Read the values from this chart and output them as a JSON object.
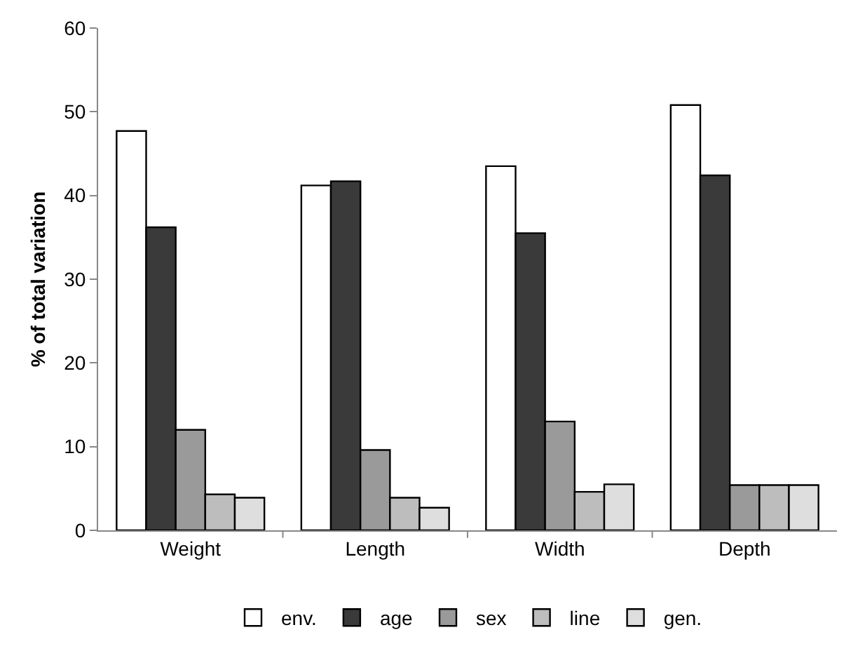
{
  "chart_data": {
    "type": "bar",
    "ylabel": "% of total variation",
    "categories": [
      "Weight",
      "Length",
      "Width",
      "Depth"
    ],
    "series": [
      {
        "name": "env.",
        "color": "#ffffff",
        "values": [
          47.7,
          41.2,
          43.5,
          50.8
        ]
      },
      {
        "name": "age",
        "color": "#3a3a3a",
        "values": [
          36.2,
          41.7,
          35.5,
          42.4
        ]
      },
      {
        "name": "sex",
        "color": "#9a9a9a",
        "values": [
          12.0,
          9.6,
          13.0,
          5.4
        ]
      },
      {
        "name": "line",
        "color": "#bdbdbd",
        "values": [
          4.3,
          3.9,
          4.6,
          5.4
        ]
      },
      {
        "name": "gen.",
        "color": "#dedede",
        "values": [
          3.9,
          2.7,
          5.5,
          5.4
        ]
      }
    ],
    "ylim": [
      0,
      60
    ],
    "yticks": [
      0,
      10,
      20,
      30,
      40,
      50,
      60
    ],
    "grid": false,
    "legend": "bottom"
  }
}
